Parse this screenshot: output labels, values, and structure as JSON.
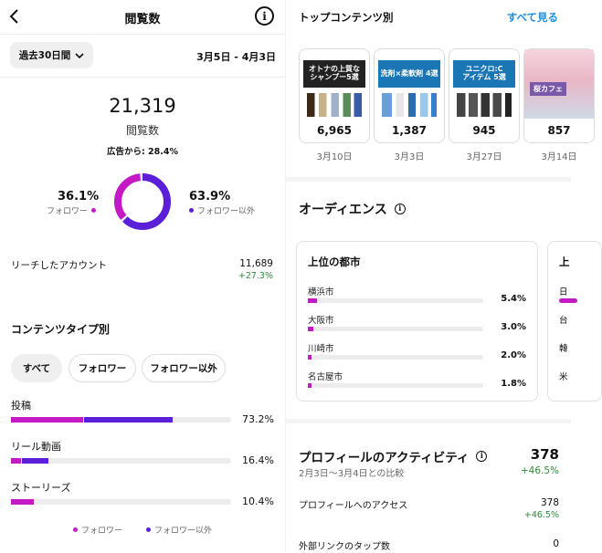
{
  "header": {
    "title": "閲覧数"
  },
  "period": {
    "selector_label": "過去30日間",
    "range": "3月5日 - 4月3日"
  },
  "summary": {
    "total": "21,319",
    "total_label": "閲覧数",
    "from_ads": "広告から: 28.4%",
    "follower_pct": "36.1%",
    "follower_label": "フォロワー",
    "nonfollower_pct": "63.9%",
    "nonfollower_label": "フォロワー以外",
    "donut": {
      "follower_share": 36.1,
      "nonfollower_share": 63.9
    }
  },
  "reach": {
    "label": "リーチしたアカウント",
    "value": "11,689",
    "change": "+27.3%"
  },
  "content_type": {
    "title": "コンテンツタイプ別",
    "filters": [
      {
        "label": "すべて",
        "active": true
      },
      {
        "label": "フォロワー",
        "active": false
      },
      {
        "label": "フォロワー以外",
        "active": false
      }
    ],
    "rows": [
      {
        "label": "投稿",
        "pct": "73.2%",
        "follower": 32.8,
        "nonfollower": 40.4
      },
      {
        "label": "リール動画",
        "pct": "16.4%",
        "follower": 4.5,
        "nonfollower": 11.9
      },
      {
        "label": "ストーリーズ",
        "pct": "10.4%",
        "follower": 10.4,
        "nonfollower": 0
      }
    ],
    "legend": {
      "follower": "フォロワー",
      "nonfollower": "フォロワー以外"
    }
  },
  "top_content": {
    "title": "トップコンテンツ別",
    "see_all": "すべて見る",
    "items": [
      {
        "banner": "オトナの上質な\nシャンプー5選",
        "count": "6,965",
        "date": "3月10日"
      },
      {
        "banner": "洗剤×柔軟剤 4選",
        "count": "1,387",
        "date": "3月3日"
      },
      {
        "banner": "ユニクロ:C\nアイテム 5選",
        "count": "945",
        "date": "3月27日"
      },
      {
        "banner": "桜カフェ",
        "count": "857",
        "date": "3月14日"
      }
    ]
  },
  "audience": {
    "title": "オーディエンス",
    "card_title": "上位の都市",
    "cities": [
      {
        "name": "横浜市",
        "pct": "5.4%",
        "share": 5.4
      },
      {
        "name": "大阪市",
        "pct": "3.0%",
        "share": 3.0
      },
      {
        "name": "川崎市",
        "pct": "2.0%",
        "share": 2.0
      },
      {
        "name": "名古屋市",
        "pct": "1.8%",
        "share": 1.8
      }
    ],
    "next_card": {
      "title": "上",
      "rows": [
        "日",
        "台",
        "韓",
        "米"
      ]
    }
  },
  "profile": {
    "title": "プロフィールのアクティビティ",
    "value": "378",
    "change": "+46.5%",
    "compare": "2月3日～3月4日との比較",
    "rows": [
      {
        "label": "プロフィールへのアクセス",
        "value": "378",
        "change": "+46.5%"
      },
      {
        "label": "外部リンクのタップ数",
        "value": "0",
        "change": ""
      }
    ]
  },
  "colors": {
    "follower": "#c31ac6",
    "nonfollower": "#5a1fd6",
    "positive": "#2e8b3a"
  }
}
